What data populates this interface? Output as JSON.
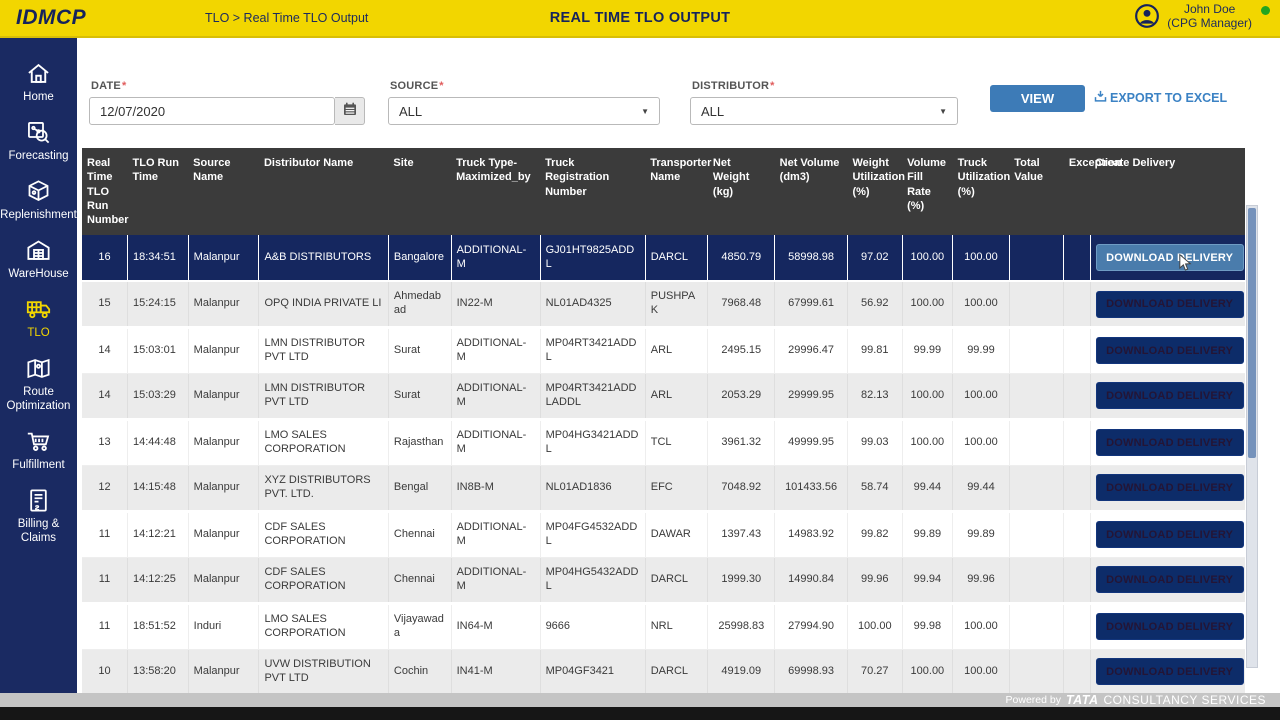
{
  "header": {
    "logo": "IDMCP",
    "breadcrumb": "TLO > Real Time TLO Output",
    "title": "REAL TIME TLO OUTPUT",
    "user": {
      "name": "John Doe",
      "role": "(CPG Manager)"
    }
  },
  "sidebar": {
    "items": [
      {
        "label": "Home",
        "icon": "home-icon",
        "active": false
      },
      {
        "label": "Forecasting",
        "icon": "forecasting-icon",
        "active": false
      },
      {
        "label": "Replenishment",
        "icon": "replenishment-icon",
        "active": false
      },
      {
        "label": "WareHouse",
        "icon": "warehouse-icon",
        "active": false
      },
      {
        "label": "TLO",
        "icon": "truck-icon",
        "active": true
      },
      {
        "label": "Route Optimization",
        "icon": "route-map-icon",
        "active": false
      },
      {
        "label": "Fulfillment",
        "icon": "cart-icon",
        "active": false
      },
      {
        "label": "Billing & Claims",
        "icon": "billing-document-icon",
        "active": false
      }
    ]
  },
  "filters": {
    "date": {
      "label": "DATE",
      "required_mark": "*",
      "value": "12/07/2020"
    },
    "source": {
      "label": "SOURCE",
      "required_mark": "*",
      "value": "ALL"
    },
    "distributor": {
      "label": "DISTRIBUTOR",
      "required_mark": "*",
      "value": "ALL"
    },
    "view_button_label": "VIEW",
    "export_label": "EXPORT TO EXCEL"
  },
  "table": {
    "columns": [
      "Real Time TLO Run Number",
      "TLO Run Time",
      "Source Name",
      "Distributor Name",
      "Site",
      "Truck Type-Maximized_by",
      "Truck Registration Number",
      "Transporter Name",
      "Net Weight (kg)",
      "Net Volume (dm3)",
      "Weight Utilization (%)",
      "Volume Fill Rate (%)",
      "Truck Utilization (%)",
      "Total Value",
      "Exception",
      "Create Delivery"
    ],
    "column_keys": [
      "run-number",
      "run-time",
      "source-name",
      "distributor-name",
      "site",
      "truck-type",
      "truck-registration",
      "transporter-name",
      "net-weight",
      "net-volume",
      "weight-utilization",
      "volume-fill-rate",
      "truck-utilization",
      "total-value",
      "exception"
    ],
    "download_button_label": "DOWNLOAD DELIVERY",
    "rows": [
      {
        "selected": true,
        "cells": [
          "16",
          "18:34:51",
          "Malanpur",
          "A&B DISTRIBUTORS",
          "Bangalore",
          "ADDITIONAL-M",
          "GJ01HT9825ADDL",
          "DARCL",
          "4850.79",
          "58998.98",
          "97.02",
          "100.00",
          "100.00",
          "",
          ""
        ]
      },
      {
        "selected": false,
        "cells": [
          "15",
          "15:24:15",
          "Malanpur",
          "OPQ INDIA PRIVATE LI",
          "Ahmedabad",
          "IN22-M",
          "NL01AD4325",
          "PUSHPAK",
          "7968.48",
          "67999.61",
          "56.92",
          "100.00",
          "100.00",
          "",
          ""
        ]
      },
      {
        "selected": false,
        "cells": [
          "14",
          "15:03:01",
          "Malanpur",
          "LMN DISTRIBUTOR PVT LTD",
          "Surat",
          "ADDITIONAL-M",
          "MP04RT3421ADDL",
          "ARL",
          "2495.15",
          "29996.47",
          "99.81",
          "99.99",
          "99.99",
          "",
          ""
        ]
      },
      {
        "selected": false,
        "cells": [
          "14",
          "15:03:29",
          "Malanpur",
          "LMN DISTRIBUTOR PVT LTD",
          "Surat",
          "ADDITIONAL-M",
          "MP04RT3421ADDLADDL",
          "ARL",
          "2053.29",
          "29999.95",
          "82.13",
          "100.00",
          "100.00",
          "",
          ""
        ]
      },
      {
        "selected": false,
        "cells": [
          "13",
          "14:44:48",
          "Malanpur",
          "LMO SALES CORPORATION",
          "Rajasthan",
          "ADDITIONAL-M",
          "MP04HG3421ADDL",
          "TCL",
          "3961.32",
          "49999.95",
          "99.03",
          "100.00",
          "100.00",
          "",
          ""
        ]
      },
      {
        "selected": false,
        "cells": [
          "12",
          "14:15:48",
          "Malanpur",
          "XYZ DISTRIBUTORS PVT. LTD.",
          "Bengal",
          "IN8B-M",
          "NL01AD1836",
          "EFC",
          "7048.92",
          "101433.56",
          "58.74",
          "99.44",
          "99.44",
          "",
          ""
        ]
      },
      {
        "selected": false,
        "cells": [
          "11",
          "14:12:21",
          "Malanpur",
          "CDF SALES CORPORATION",
          "Chennai",
          "ADDITIONAL-M",
          "MP04FG4532ADDL",
          "DAWAR",
          "1397.43",
          "14983.92",
          "99.82",
          "99.89",
          "99.89",
          "",
          ""
        ]
      },
      {
        "selected": false,
        "cells": [
          "11",
          "14:12:25",
          "Malanpur",
          "CDF SALES CORPORATION",
          "Chennai",
          "ADDITIONAL-M",
          "MP04HG5432ADDL",
          "DARCL",
          "1999.30",
          "14990.84",
          "99.96",
          "99.94",
          "99.96",
          "",
          ""
        ]
      },
      {
        "selected": false,
        "cells": [
          "11",
          "18:51:52",
          "Induri",
          "LMO SALES CORPORATION",
          "Vijayawada",
          "IN64-M",
          "9666",
          "NRL",
          "25998.83",
          "27994.90",
          "100.00",
          "99.98",
          "100.00",
          "",
          ""
        ]
      },
      {
        "selected": false,
        "cells": [
          "10",
          "13:58:20",
          "Malanpur",
          "UVW DISTRIBUTION PVT LTD",
          "Cochin",
          "IN41-M",
          "MP04GF3421",
          "DARCL",
          "4919.09",
          "69998.93",
          "70.27",
          "100.00",
          "100.00",
          "",
          ""
        ]
      }
    ]
  },
  "footer": {
    "powered_by": "Powered by",
    "brand": "TATA",
    "brand_suffix": "CONSULTANCY SERVICES"
  },
  "colors": {
    "header_yellow": "#F2D600",
    "sidebar_navy": "#1A2A62",
    "selected_row_navy": "#15275F",
    "table_header_gray": "#3B3B3B",
    "view_button_blue": "#3D7BB7",
    "link_blue": "#3B82C4",
    "row_alt_gray": "#EBEBEB",
    "status_green": "#22A51F"
  }
}
